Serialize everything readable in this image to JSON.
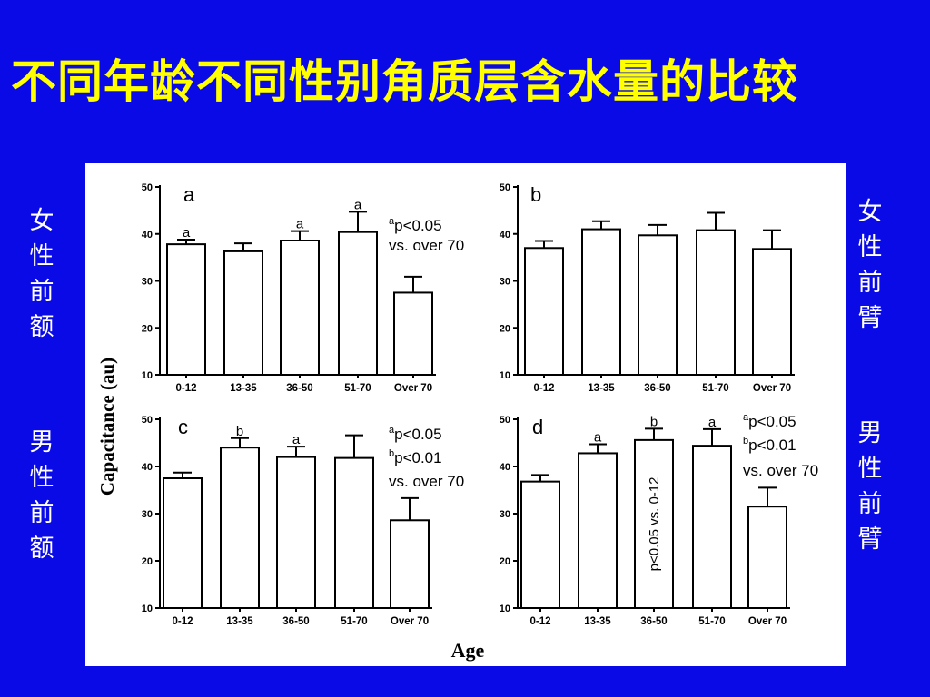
{
  "title": "不同年龄不同性别角质层含水量的比较",
  "side_labels": {
    "top_left": "女性前额",
    "bottom_left": "男性前额",
    "top_right": "女性前臂",
    "bottom_right": "男性前臂"
  },
  "colors": {
    "background": "#0a0ae6",
    "title": "#ffff00",
    "side_text": "#ffffff",
    "figure_bg": "#ffffff",
    "bars": "#ffffff",
    "ink": "#000000"
  },
  "chart_data": [
    {
      "type": "bar",
      "panel": "a",
      "categories": [
        "0-12",
        "13-35",
        "36-50",
        "51-70",
        "Over 70"
      ],
      "values": [
        37.8,
        36.3,
        38.6,
        40.4,
        27.5
      ],
      "errors": [
        1.0,
        1.7,
        2.0,
        4.3,
        3.4
      ],
      "marks": [
        "a",
        "",
        "a",
        "a",
        ""
      ],
      "annotations": [
        {
          "sup": "a",
          "text": "p<0.05"
        },
        {
          "sup": "",
          "text": "vs. over 70"
        }
      ],
      "ylim": [
        10,
        50
      ],
      "yticks": [
        10,
        20,
        30,
        40,
        50
      ]
    },
    {
      "type": "bar",
      "panel": "b",
      "categories": [
        "0-12",
        "13-35",
        "36-50",
        "51-70",
        "Over 70"
      ],
      "values": [
        37.0,
        41.0,
        39.7,
        40.8,
        36.8
      ],
      "errors": [
        1.5,
        1.7,
        2.2,
        3.7,
        4.0
      ],
      "marks": [
        "",
        "",
        "",
        "",
        ""
      ],
      "annotations": [],
      "ylim": [
        10,
        50
      ],
      "yticks": [
        10,
        20,
        30,
        40,
        50
      ]
    },
    {
      "type": "bar",
      "panel": "c",
      "categories": [
        "0-12",
        "13-35",
        "36-50",
        "51-70",
        "Over 70"
      ],
      "values": [
        37.5,
        44.0,
        42.0,
        41.8,
        28.6
      ],
      "errors": [
        1.2,
        2.0,
        2.2,
        4.8,
        4.7
      ],
      "marks": [
        "",
        "b",
        "a",
        "",
        ""
      ],
      "annotations": [
        {
          "sup": "a",
          "text": "p<0.05"
        },
        {
          "sup": "b",
          "text": "p<0.01"
        },
        {
          "sup": "",
          "text": "vs. over 70"
        }
      ],
      "ylim": [
        10,
        50
      ],
      "yticks": [
        10,
        20,
        30,
        40,
        50
      ]
    },
    {
      "type": "bar",
      "panel": "d",
      "categories": [
        "0-12",
        "13-35",
        "36-50",
        "51-70",
        "Over 70"
      ],
      "values": [
        36.8,
        42.8,
        45.6,
        44.4,
        31.5
      ],
      "errors": [
        1.4,
        1.9,
        2.4,
        3.5,
        4.0
      ],
      "marks": [
        "",
        "a",
        "b",
        "a",
        ""
      ],
      "annotations": [
        {
          "sup": "a",
          "text": "p<0.05"
        },
        {
          "sup": "b",
          "text": "p<0.01"
        },
        {
          "sup": "",
          "text": "vs. over 70"
        }
      ],
      "bar_note": "p<0.05 vs. 0-12",
      "ylim": [
        10,
        50
      ],
      "yticks": [
        10,
        20,
        30,
        40,
        50
      ]
    }
  ],
  "ylabel": "Capacitance (au)",
  "xlabel": "Age"
}
